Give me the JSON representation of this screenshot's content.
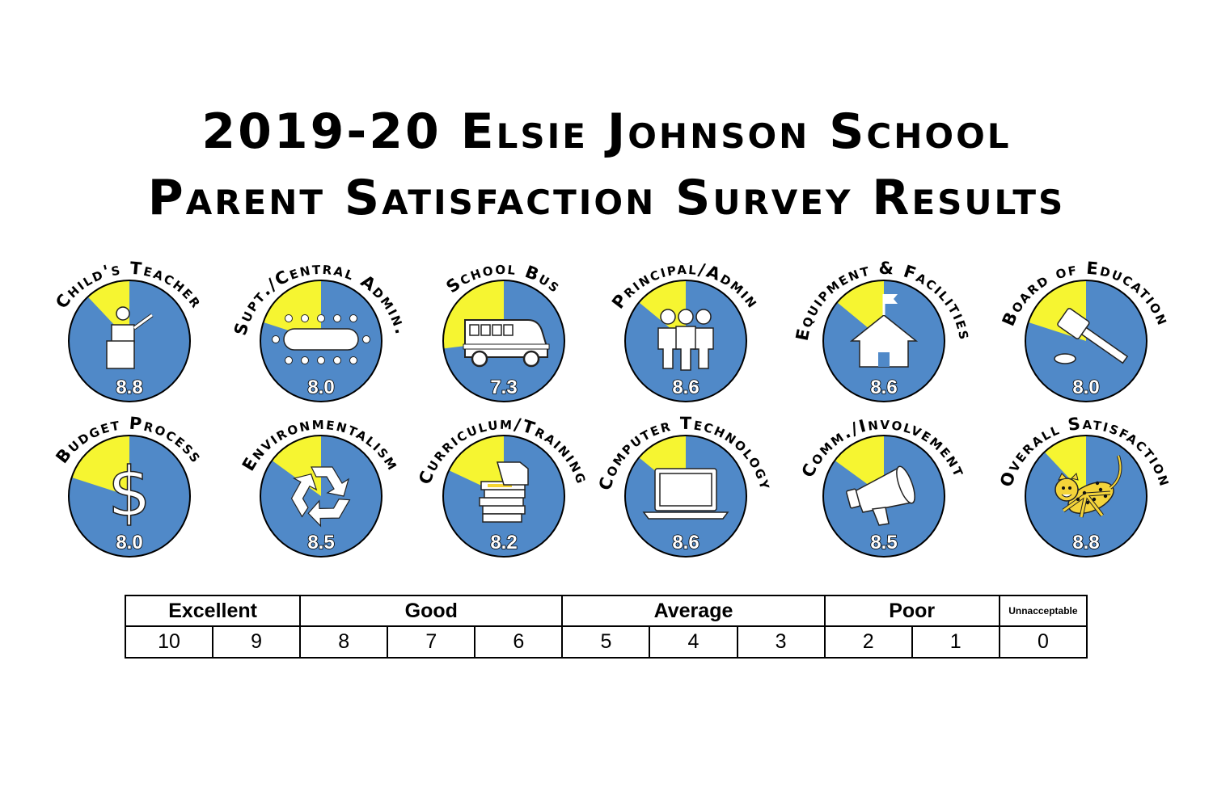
{
  "title": {
    "line1": "2019-20 Elsie Johnson School",
    "line2": "Parent Satisfaction Survey Results"
  },
  "colors": {
    "blue": "#5089c8",
    "yellow": "#f6f531",
    "outline": "#000000",
    "icon": "#ffffff"
  },
  "chart_data": {
    "type": "pie",
    "scale_max": 10,
    "categories": [
      {
        "label": "Child's Teacher",
        "value": 8.8,
        "icon": "teacher-at-podium-icon"
      },
      {
        "label": "Supt./Central Admin.",
        "value": 8.0,
        "icon": "meeting-table-icon"
      },
      {
        "label": "School Bus",
        "value": 7.3,
        "icon": "school-bus-icon"
      },
      {
        "label": "Principal/Admin",
        "value": 8.6,
        "icon": "people-group-icon"
      },
      {
        "label": "Equipment & Facilities",
        "value": 8.6,
        "icon": "school-house-icon"
      },
      {
        "label": "Board of Education",
        "value": 8.0,
        "icon": "gavel-icon"
      },
      {
        "label": "Budget Process",
        "value": 8.0,
        "icon": "dollar-sign-icon"
      },
      {
        "label": "Environmentalism",
        "value": 8.5,
        "icon": "recycle-icon"
      },
      {
        "label": "Curriculum/Training",
        "value": 8.2,
        "icon": "book-stack-icon"
      },
      {
        "label": "Computer Technology",
        "value": 8.6,
        "icon": "laptop-icon"
      },
      {
        "label": "Comm./Involvement",
        "value": 8.5,
        "icon": "megaphone-icon"
      },
      {
        "label": "Overall Satisfaction",
        "value": 8.8,
        "icon": "jaguar-mascot-icon"
      }
    ]
  },
  "rating_scale": {
    "groups": [
      {
        "label": "Excellent",
        "span": 2
      },
      {
        "label": "Good",
        "span": 3
      },
      {
        "label": "Average",
        "span": 3
      },
      {
        "label": "Poor",
        "span": 2
      },
      {
        "label": "Unnacceptable",
        "span": 1
      }
    ],
    "values": [
      "10",
      "9",
      "8",
      "7",
      "6",
      "5",
      "4",
      "3",
      "2",
      "1",
      "0"
    ]
  }
}
